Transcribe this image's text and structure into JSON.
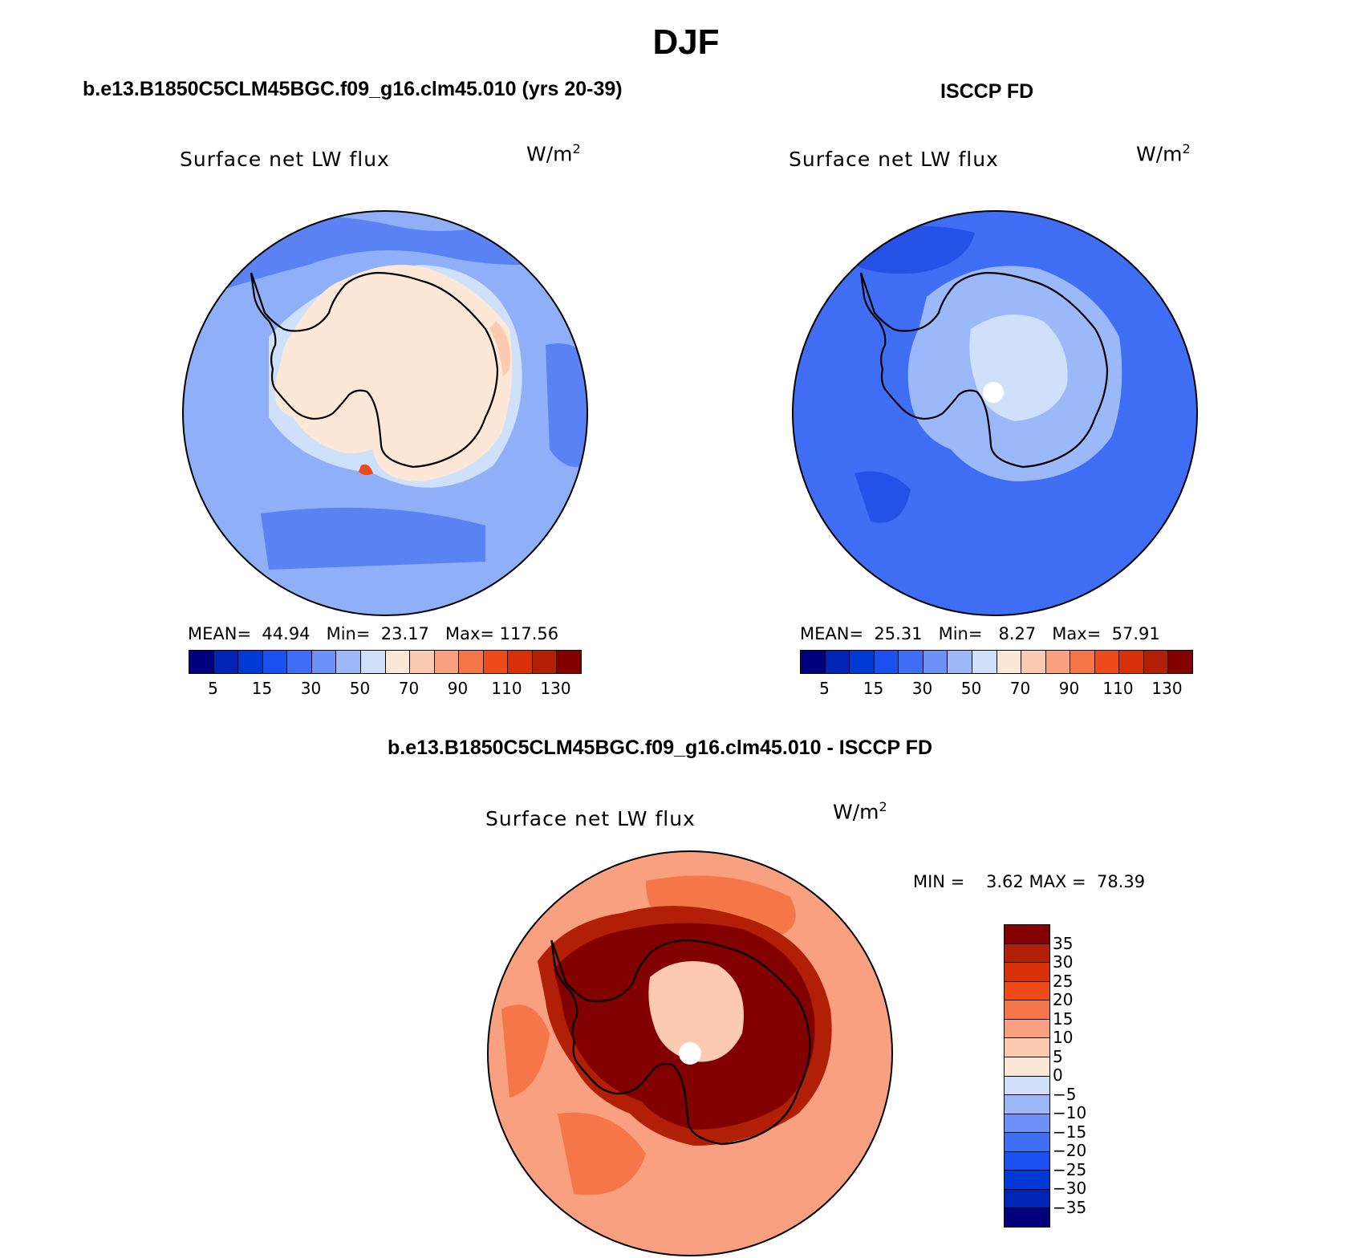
{
  "title": "DJF",
  "panels": [
    {
      "case_title": "b.e13.B1850C5CLM45BGC.f09_g16.clm45.010 (yrs 20-39)",
      "variable": "Surface net LW flux",
      "units_base": "W/m",
      "units_exp": "2",
      "stats": {
        "mean_label": "MEAN=",
        "mean": "44.94",
        "min_label": "Min=",
        "min": "23.17",
        "max_label": "Max=",
        "max": "117.56"
      },
      "field_description": "moderate positive values (~30-50) over ocean, higher (~60-70) over Antarctic continent"
    },
    {
      "case_title": "ISCCP FD",
      "variable": "Surface net LW flux",
      "units_base": "W/m",
      "units_exp": "2",
      "stats": {
        "mean_label": "MEAN=",
        "mean": "25.31",
        "min_label": "Min=",
        "min": "8.27",
        "max_label": "Max=",
        "max": "57.91"
      }
    },
    {
      "case_title": "b.e13.B1850C5CLM45BGC.f09_g16.clm45.010 - ISCCP FD",
      "variable": "Surface net LW flux",
      "units_base": "W/m",
      "units_exp": "2",
      "stats": {
        "min_label": "MIN =",
        "min": "3.62",
        "max_label": "MAX =",
        "max": "78.39"
      }
    }
  ],
  "abs_colorbar": {
    "colors": [
      "#00007f",
      "#0024b4",
      "#003ad6",
      "#1a4ff0",
      "#3f6ef5",
      "#6d92f7",
      "#9bb8f9",
      "#cfe0fb",
      "#fde8d7",
      "#fbcab0",
      "#f8a07f",
      "#f57649",
      "#ee4a1a",
      "#d8310a",
      "#b21f07",
      "#820000"
    ],
    "tick_labels": [
      "5",
      "15",
      "30",
      "50",
      "70",
      "90",
      "110",
      "130"
    ]
  },
  "diff_colorbar": {
    "colors": [
      "#00007f",
      "#0024b4",
      "#003ad6",
      "#1a4ff0",
      "#3f6ef5",
      "#6d92f7",
      "#9bb8f9",
      "#cfe0fb",
      "#fde8d7",
      "#fbcab0",
      "#f8a07f",
      "#f57649",
      "#ee4a1a",
      "#d8310a",
      "#b21f07",
      "#820000"
    ],
    "tick_labels": [
      "35",
      "30",
      "25",
      "20",
      "15",
      "10",
      "5",
      "0",
      "−5",
      "−10",
      "−15",
      "−20",
      "−25",
      "−30",
      "−35"
    ]
  },
  "map_colors": {
    "model_ocean": "#8fb0f8",
    "model_ocean_dark": "#5a82f3",
    "model_ice_edge": "#cfe0fb",
    "model_land": "#fde8d7",
    "model_land_warm": "#fbcab0",
    "obs_ocean": "#3f6ef5",
    "obs_ocean_dark": "#2452e6",
    "obs_land": "#9bb8f9",
    "obs_land_light": "#cfe0fb",
    "diff_ocean": "#f8a07f",
    "diff_ocean_warm": "#f57649",
    "diff_land": "#b21f07",
    "diff_land_core": "#820000",
    "diff_center": "#fbcab0"
  }
}
